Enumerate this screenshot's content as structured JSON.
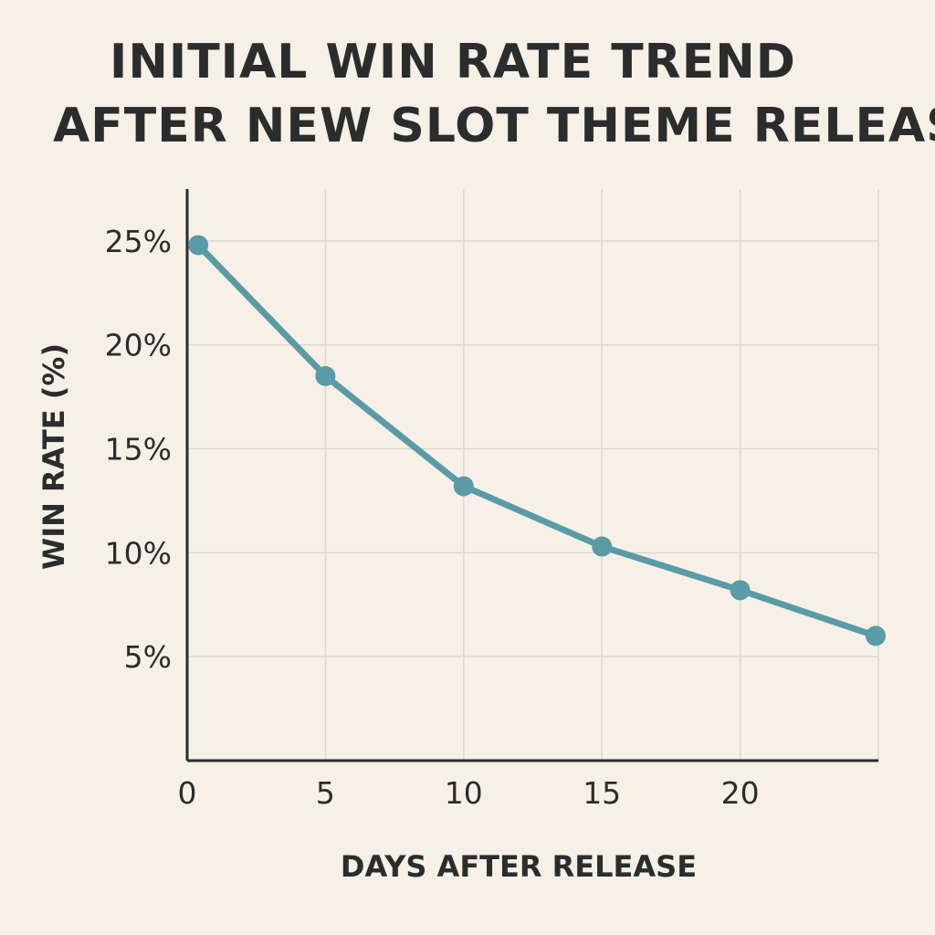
{
  "chart_data": {
    "type": "line",
    "title_lines": [
      "INITIAL WIN RATE TREND",
      "AFTER NEW SLOT THEME RELEAS"
    ],
    "xlabel": "DAYS AFTER RELEASE",
    "ylabel": "WIN RATE (%)",
    "x_ticks": [
      "0",
      "5",
      "10",
      "15",
      "20"
    ],
    "y_ticks": [
      "5%",
      "10%",
      "15%",
      "20%",
      "25%"
    ],
    "xlim": [
      0,
      25
    ],
    "ylim": [
      0,
      27.5
    ],
    "grid": true,
    "series": [
      {
        "x": [
          0.4,
          5,
          10,
          15,
          20,
          24.9
        ],
        "y": [
          24.8,
          18.5,
          13.2,
          10.3,
          8.2,
          6.0
        ],
        "color": "#5b9ba8"
      }
    ]
  }
}
